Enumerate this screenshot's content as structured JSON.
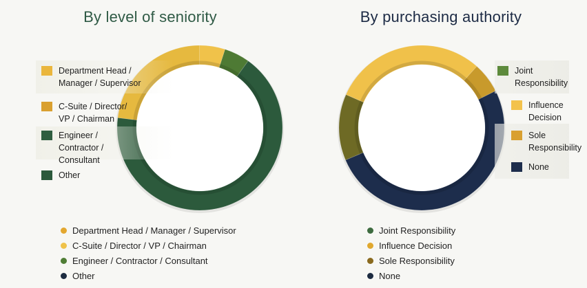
{
  "chart_data": [
    {
      "type": "pie",
      "title": "By level of seniority",
      "categories": [
        "Department Head / Manager / Supervisor",
        "C-Suite / Director/ VP / Chairman",
        "Engineer / Contractor / Consultant",
        "Other"
      ],
      "side_legend": [
        "Department Head / Manager / Supervisor",
        "C-Suite / Director/ VP / Chairman",
        "Engineer / Contractor / Consultant",
        "Other"
      ],
      "bottom_legend": [
        "Department Head / Manager / Supervisor",
        "C-Suite / Director / VP / Chairman",
        "Engineer / Contractor / Consultant",
        "Other"
      ],
      "values": [
        23,
        5,
        5,
        67
      ],
      "colors": [
        "#e6b93f",
        "#f0c24a",
        "#4e7a34",
        "#2c5a3c"
      ],
      "dot_colors": [
        "#e3a72f",
        "#efc24a",
        "#4f7d35",
        "#1c2b40"
      ],
      "legend_placement": "left"
    },
    {
      "type": "pie",
      "title": "By purchasing authority",
      "categories": [
        "Joint Responsibility",
        "Influence Decision",
        "Sole Responsibility",
        "None"
      ],
      "side_legend": [
        "Joint Responsibility",
        "Influence Decision",
        "Sole Responsibility",
        "None"
      ],
      "bottom_legend": [
        "Joint Responsibility",
        "Influence Decision",
        "Sole Responsibility",
        "None"
      ],
      "values": [
        13,
        30,
        6,
        51
      ],
      "colors": [
        "#6e6a25",
        "#f0c14a",
        "#c89a2c",
        "#1d2d4c"
      ],
      "dot_colors": [
        "#3d6b3f",
        "#e0a82e",
        "#8a6a1e",
        "#1c2b40"
      ],
      "legend_placement": "right"
    }
  ]
}
